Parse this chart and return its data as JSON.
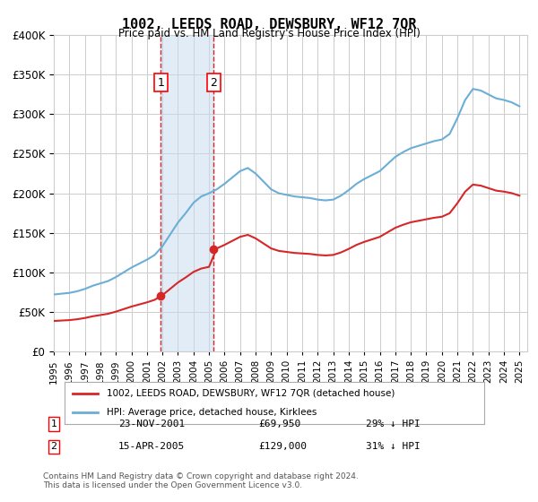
{
  "title": "1002, LEEDS ROAD, DEWSBURY, WF12 7QR",
  "subtitle": "Price paid vs. HM Land Registry's House Price Index (HPI)",
  "hpi_label": "HPI: Average price, detached house, Kirklees",
  "property_label": "1002, LEEDS ROAD, DEWSBURY, WF12 7QR (detached house)",
  "footer": "Contains HM Land Registry data © Crown copyright and database right 2024.\nThis data is licensed under the Open Government Licence v3.0.",
  "transaction1": {
    "label": "1",
    "date": "23-NOV-2001",
    "price": "£69,950",
    "hpi": "29% ↓ HPI"
  },
  "transaction2": {
    "label": "2",
    "date": "15-APR-2005",
    "price": "£129,000",
    "hpi": "31% ↓ HPI"
  },
  "vline1_x": 2001.9,
  "vline2_x": 2005.3,
  "dot1_x": 2001.9,
  "dot1_y": 69950,
  "dot2_x": 2005.3,
  "dot2_y": 129000,
  "ylim": [
    0,
    400000
  ],
  "xlim": [
    1995,
    2025.5
  ],
  "hpi_color": "#6baed6",
  "property_color": "#d62728",
  "vline_color": "#d62728",
  "shade_color": "#c6dbef",
  "grid_color": "#cccccc",
  "background_color": "#ffffff"
}
